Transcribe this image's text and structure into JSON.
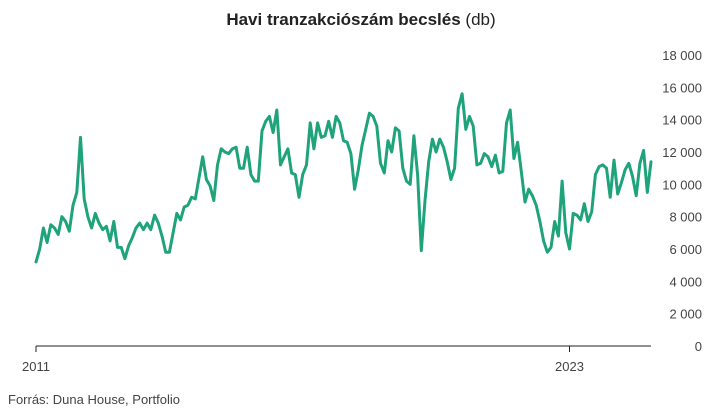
{
  "title": {
    "main": "Havi tranzakciószám becslés",
    "unit": "(db)"
  },
  "source": "Forrás: Duna House, Portfolio",
  "colors": {
    "line": "#1fa37a",
    "axis": "#222222",
    "text": "#444444"
  },
  "chart_data": {
    "type": "line",
    "title": "Havi tranzakciószám becslés (db)",
    "xlabel": "",
    "ylabel": "",
    "x_start": "2011-01",
    "x_frequency": "monthly",
    "x_tick_labels": [
      {
        "label": "2011",
        "month_index": 0
      },
      {
        "label": "2023",
        "month_index": 144
      }
    ],
    "y_ticks": [
      0,
      2000,
      4000,
      6000,
      8000,
      10000,
      12000,
      14000,
      16000,
      18000
    ],
    "y_tick_labels": [
      "0",
      "2 000",
      "4 000",
      "6 000",
      "8 000",
      "10 000",
      "12 000",
      "14 000",
      "16 000",
      "18 000"
    ],
    "ylim": [
      0,
      18000
    ],
    "y_axis_position": "right",
    "grid": false,
    "legend": "none",
    "series": [
      {
        "values": [
          5200,
          6000,
          7300,
          6400,
          7500,
          7300,
          6900,
          8000,
          7700,
          7100,
          8700,
          9500,
          12900,
          9100,
          8000,
          7300,
          8200,
          7600,
          7200,
          7400,
          6500,
          7700,
          6100,
          6100,
          5400,
          6200,
          6700,
          7300,
          7600,
          7200,
          7600,
          7200,
          8100,
          7600,
          6800,
          5800,
          5800,
          7000,
          8200,
          7800,
          8600,
          8700,
          9200,
          9100,
          10400,
          11700,
          10300,
          9900,
          9000,
          11200,
          12200,
          12000,
          11900,
          12200,
          12300,
          11000,
          11000,
          12300,
          10600,
          10200,
          10200,
          13300,
          13900,
          14200,
          13200,
          14600,
          11200,
          11700,
          12200,
          10700,
          10600,
          9200,
          10600,
          11200,
          13800,
          12200,
          13800,
          12900,
          13000,
          13900,
          12900,
          14200,
          13800,
          12700,
          12600,
          11900,
          9700,
          10900,
          12400,
          13400,
          14400,
          14200,
          13600,
          11300,
          10700,
          12700,
          12000,
          13500,
          13300,
          11000,
          10200,
          10000,
          13000,
          10600,
          5900,
          9000,
          11400,
          12800,
          12000,
          12800,
          12300,
          11400,
          10300,
          11000,
          14700,
          15600,
          13400,
          14200,
          13600,
          11200,
          11300,
          11900,
          11700,
          11100,
          11800,
          10700,
          10800,
          13800,
          14600,
          11600,
          12600,
          10800,
          8900,
          9700,
          9300,
          8700,
          7700,
          6500,
          5800,
          6100,
          7700,
          6800,
          10200,
          7000,
          6000,
          8200,
          8100,
          7800,
          8800,
          7700,
          8300,
          10600,
          11100,
          11200,
          11000,
          9200,
          11500,
          9400,
          10100,
          10900,
          11300,
          10500,
          9300,
          11300,
          12100,
          9500,
          11400
        ]
      }
    ]
  }
}
